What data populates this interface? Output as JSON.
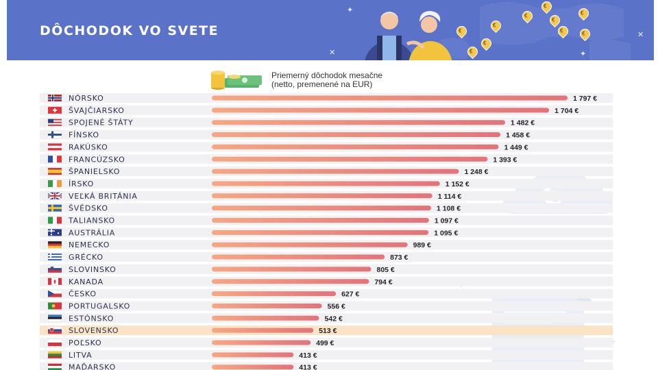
{
  "header": {
    "title": "DÔCHODOK VO SVETE"
  },
  "legend": {
    "line1": "Priemerný dôchodok mesačne",
    "line2": "(netto, premenené na EUR)"
  },
  "colors": {
    "banner": "#5a72c8",
    "bar_start": "#f6a783",
    "bar_end": "#e2737a",
    "row_bg": "#f1f1f3",
    "highlight_bg": "#fbe3c6"
  },
  "chart_data": {
    "type": "bar",
    "orientation": "horizontal",
    "highlight": "SLOVENSKO",
    "categories": [
      "NÓRSKO",
      "ŠVAJČIARSKO",
      "SPOJENÉ ŠTÁTY",
      "FÍNSKO",
      "RAKÚSKO",
      "FRANCÚZSKO",
      "ŠPANIELSKO",
      "ÍRSKO",
      "VEĽKÁ BRITÁNIA",
      "ŠVÉDSKO",
      "TALIANSKO",
      "AUSTRÁLIA",
      "NEMECKO",
      "GRÉCKO",
      "SLOVINSKO",
      "KANADA",
      "ČESKO",
      "PORTUGALSKO",
      "ESTÓNSKO",
      "SLOVENSKO",
      "POĽSKO",
      "LITVA",
      "MAĎARSKO"
    ],
    "values": [
      1797,
      1704,
      1482,
      1458,
      1449,
      1393,
      1248,
      1152,
      1114,
      1108,
      1097,
      1095,
      989,
      873,
      805,
      794,
      627,
      556,
      542,
      513,
      499,
      413,
      413
    ],
    "value_labels": [
      "1 797 €",
      "1 704 €",
      "1 482 €",
      "1 458 €",
      "1 449 €",
      "1 393 €",
      "1 248 €",
      "1 152 €",
      "1 114 €",
      "1 108 €",
      "1 097 €",
      "1 095 €",
      "989 €",
      "873 €",
      "805 €",
      "794 €",
      "627 €",
      "556 €",
      "542 €",
      "513 €",
      "499 €",
      "413 €",
      "413 €"
    ],
    "flags": [
      "norway",
      "switzerland",
      "usa",
      "finland",
      "austria",
      "france",
      "spain",
      "ireland",
      "uk",
      "sweden",
      "italy",
      "australia",
      "germany",
      "greece",
      "slovenia",
      "canada",
      "czechia",
      "portugal",
      "estonia",
      "slovakia",
      "poland",
      "lithuania",
      "hungary"
    ],
    "xlim": [
      0,
      1797
    ]
  }
}
